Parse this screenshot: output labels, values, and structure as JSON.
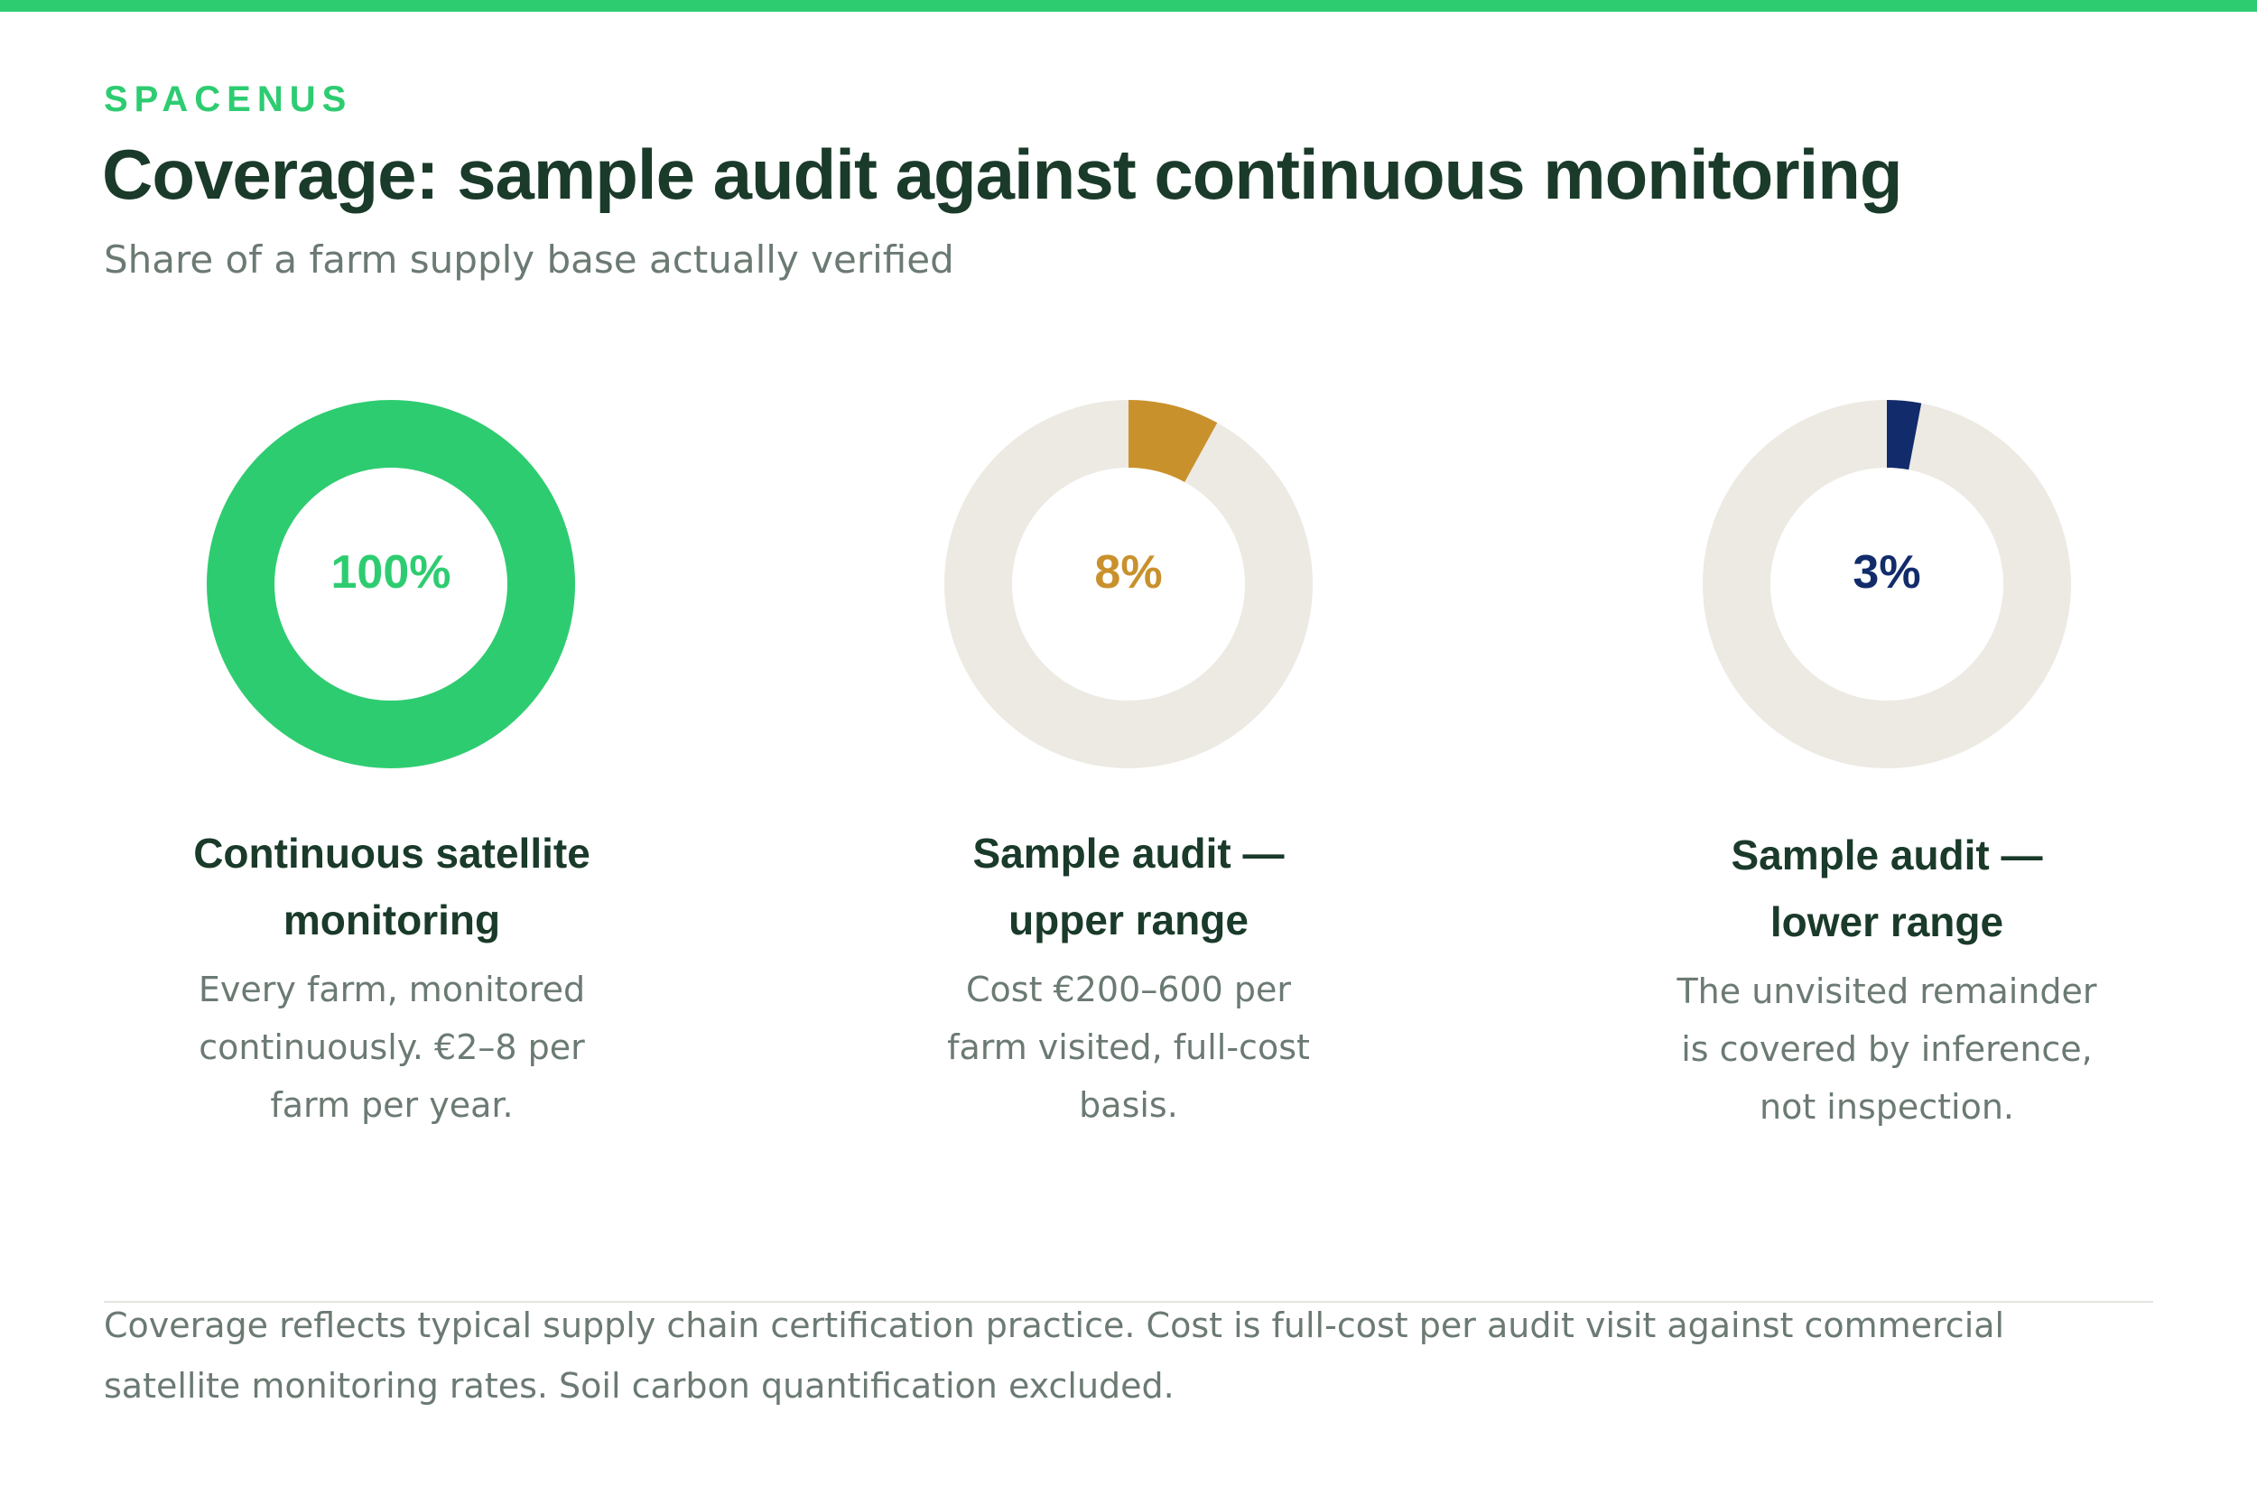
{
  "brand": "SPACENUS",
  "title": "Coverage: sample audit against continuous monitoring",
  "subtitle": "Share of a farm supply base actually verified",
  "colors": {
    "accent": "#2ecc71",
    "track": "#eceae3",
    "upper": "#c9912c",
    "lower": "#122c6b",
    "heading": "#1a3a2a",
    "muted": "#6b7a72"
  },
  "chart_data": {
    "type": "pie",
    "variant": "donut",
    "unit": "%",
    "series": [
      {
        "label": "100%",
        "value": 100,
        "color": "#2ecc71",
        "title_lines": [
          "Continuous satellite",
          "monitoring"
        ],
        "desc_lines": [
          "Every farm, monitored",
          "continuously. €2–8 per",
          "farm per year."
        ]
      },
      {
        "label": "8%",
        "value": 8,
        "color": "#c9912c",
        "title_lines": [
          "Sample audit —",
          "upper range"
        ],
        "desc_lines": [
          "Cost €200–600 per",
          "farm visited, full-cost",
          "basis."
        ]
      },
      {
        "label": "3%",
        "value": 3,
        "color": "#122c6b",
        "title_lines": [
          "Sample audit —",
          "lower range"
        ],
        "desc_lines": [
          "The unvisited remainder",
          "is covered by inference,",
          "not inspection."
        ]
      }
    ]
  },
  "footer_lines": [
    "Coverage reflects typical supply chain certification practice. Cost is full-cost per audit visit against commercial",
    "satellite monitoring rates. Soil carbon quantification excluded."
  ]
}
